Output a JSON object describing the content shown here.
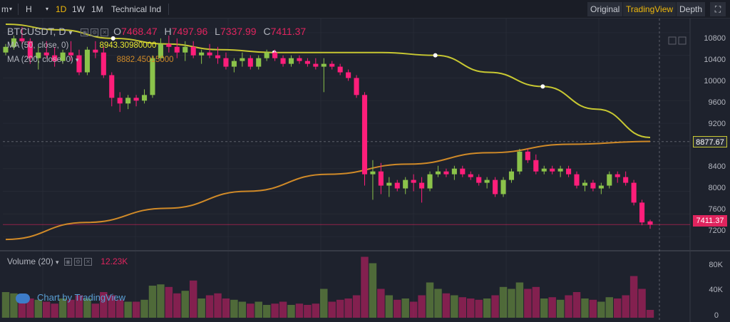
{
  "toolbar": {
    "items": [
      "m",
      "H",
      "1D",
      "1W",
      "1M",
      "Technical Ind"
    ],
    "active": "1D",
    "views": [
      "Original",
      "TradingView",
      "Depth"
    ],
    "active_view": "TradingView"
  },
  "legend": {
    "symbol": "BTCUSDT, D",
    "o_label": "O",
    "o_value": "7468.47",
    "h_label": "H",
    "h_value": "7497.96",
    "l_label": "L",
    "l_value": "7337.99",
    "c_label": "C",
    "c_value": "7411.37"
  },
  "indicators": {
    "ma50_label": "MA (50, close, 0)",
    "ma50_value": "8943.30980000",
    "ma200_label": "MA (200, close, 0)",
    "ma200_value": "8882.45015000",
    "volume_label": "Volume (20)",
    "volume_value": "12.23K"
  },
  "price_tags": {
    "ma_price": "8877.67",
    "last_price": "7411.37"
  },
  "watermark": "Chart by TradingView",
  "colors": {
    "up": "#8bc34a",
    "down": "#ff1e7a",
    "ma50": "#c8c832",
    "ma200": "#d08a28",
    "background": "#1e222d"
  },
  "chart_data": {
    "type": "candlestick",
    "symbol": "BTCUSDT",
    "interval": "D",
    "price_axis": [
      10800,
      10400,
      10000,
      9600,
      9200,
      8800,
      8400,
      8000,
      7600,
      7200
    ],
    "volume_axis": [
      "80K",
      "40K",
      "0"
    ],
    "ylim": [
      7000,
      11050
    ],
    "volume_ylim": [
      0,
      100000
    ],
    "candles": [
      [
        10450,
        10600,
        10400,
        10550,
        40000
      ],
      [
        10550,
        10750,
        10500,
        10700,
        38000
      ],
      [
        10700,
        10900,
        10600,
        10650,
        35000
      ],
      [
        10650,
        10700,
        10250,
        10350,
        30000
      ],
      [
        10350,
        10550,
        10150,
        10450,
        28000
      ],
      [
        10450,
        10650,
        10350,
        10400,
        25000
      ],
      [
        10400,
        10550,
        10200,
        10300,
        22000
      ],
      [
        10300,
        10500,
        10250,
        10450,
        30000
      ],
      [
        10450,
        10650,
        10300,
        10400,
        28000
      ],
      [
        10400,
        10500,
        10050,
        10100,
        35000
      ],
      [
        10100,
        10550,
        10050,
        10500,
        30000
      ],
      [
        10500,
        10650,
        10350,
        10450,
        22000
      ],
      [
        10450,
        10550,
        10000,
        10050,
        40000
      ],
      [
        10050,
        10100,
        9500,
        9650,
        35000
      ],
      [
        9650,
        9750,
        9400,
        9550,
        28000
      ],
      [
        9550,
        9700,
        9450,
        9650,
        25000
      ],
      [
        9650,
        9700,
        9500,
        9600,
        25000
      ],
      [
        9600,
        9800,
        9550,
        9700,
        28000
      ],
      [
        9700,
        10400,
        9650,
        10350,
        50000
      ],
      [
        10350,
        10700,
        10300,
        10600,
        52000
      ],
      [
        10600,
        10750,
        10450,
        10550,
        48000
      ],
      [
        10550,
        10700,
        10350,
        10450,
        38000
      ],
      [
        10450,
        10650,
        10300,
        10550,
        42000
      ],
      [
        10550,
        10650,
        10350,
        10400,
        58000
      ],
      [
        10400,
        10500,
        10250,
        10450,
        30000
      ],
      [
        10450,
        10600,
        10350,
        10400,
        35000
      ],
      [
        10400,
        10550,
        10250,
        10350,
        38000
      ],
      [
        10350,
        10450,
        10150,
        10200,
        30000
      ],
      [
        10200,
        10350,
        10100,
        10300,
        28000
      ],
      [
        10300,
        10450,
        10200,
        10350,
        25000
      ],
      [
        10350,
        10400,
        10150,
        10200,
        22000
      ],
      [
        10200,
        10400,
        10150,
        10350,
        25000
      ],
      [
        10350,
        10500,
        10300,
        10450,
        20000
      ],
      [
        10450,
        10500,
        10300,
        10350,
        22000
      ],
      [
        10350,
        10400,
        10200,
        10250,
        25000
      ],
      [
        10250,
        10400,
        10200,
        10350,
        20000
      ],
      [
        10350,
        10400,
        10250,
        10300,
        22000
      ],
      [
        10300,
        10350,
        10200,
        10250,
        20000
      ],
      [
        10250,
        10350,
        10150,
        10200,
        22000
      ],
      [
        10200,
        10350,
        9750,
        10250,
        45000
      ],
      [
        10250,
        10300,
        10150,
        10200,
        25000
      ],
      [
        10200,
        10250,
        10050,
        10100,
        28000
      ],
      [
        10100,
        10150,
        9950,
        10000,
        30000
      ],
      [
        10000,
        10050,
        9650,
        9700,
        35000
      ],
      [
        9700,
        9750,
        8100,
        8300,
        95000
      ],
      [
        8300,
        8550,
        7850,
        8350,
        85000
      ],
      [
        8350,
        8500,
        7950,
        8100,
        45000
      ],
      [
        8100,
        8250,
        7900,
        8150,
        35000
      ],
      [
        8150,
        8200,
        8000,
        8050,
        28000
      ],
      [
        8050,
        8250,
        7950,
        8200,
        30000
      ],
      [
        8200,
        8300,
        8000,
        8150,
        25000
      ],
      [
        8150,
        8250,
        7800,
        8050,
        35000
      ],
      [
        8050,
        8350,
        8000,
        8300,
        55000
      ],
      [
        8300,
        8450,
        8250,
        8350,
        45000
      ],
      [
        8350,
        8400,
        8250,
        8300,
        38000
      ],
      [
        8300,
        8450,
        8200,
        8400,
        35000
      ],
      [
        8400,
        8450,
        8250,
        8300,
        32000
      ],
      [
        8300,
        8350,
        8200,
        8250,
        30000
      ],
      [
        8250,
        8300,
        8100,
        8150,
        28000
      ],
      [
        8150,
        8250,
        8050,
        8200,
        30000
      ],
      [
        8200,
        8250,
        7900,
        7950,
        35000
      ],
      [
        7950,
        8250,
        7900,
        8200,
        48000
      ],
      [
        8200,
        8400,
        8150,
        8350,
        45000
      ],
      [
        8350,
        8750,
        8300,
        8700,
        55000
      ],
      [
        8700,
        8750,
        8500,
        8550,
        45000
      ],
      [
        8550,
        8650,
        8300,
        8350,
        48000
      ],
      [
        8350,
        8450,
        8300,
        8400,
        30000
      ],
      [
        8400,
        8450,
        8300,
        8350,
        32000
      ],
      [
        8350,
        8450,
        8250,
        8400,
        28000
      ],
      [
        8400,
        8450,
        8250,
        8300,
        35000
      ],
      [
        8300,
        8350,
        8050,
        8100,
        40000
      ],
      [
        8100,
        8200,
        8000,
        8150,
        30000
      ],
      [
        8150,
        8200,
        8000,
        8050,
        28000
      ],
      [
        8050,
        8150,
        7950,
        8100,
        25000
      ],
      [
        8100,
        8350,
        8050,
        8300,
        32000
      ],
      [
        8300,
        8350,
        8150,
        8250,
        30000
      ],
      [
        8250,
        8350,
        8100,
        8150,
        35000
      ],
      [
        8150,
        8200,
        7750,
        7800,
        65000
      ],
      [
        7800,
        7850,
        7400,
        7450,
        45000
      ],
      [
        7468.47,
        7497.96,
        7337.99,
        7411.37,
        12230
      ]
    ],
    "ma50": [
      10950,
      10850,
      10700,
      10600,
      10500,
      10450,
      10450,
      10450,
      10400,
      10100,
      9850,
      9450,
      8950
    ],
    "ma200": [
      7150,
      7450,
      7700,
      8000,
      8300,
      8480,
      8680,
      8830,
      8880
    ]
  }
}
